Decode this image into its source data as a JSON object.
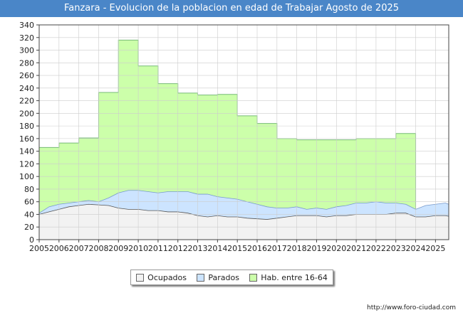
{
  "chart_data": {
    "type": "area",
    "title": "Fanzara - Evolucion de la poblacion en edad de Trabajar Agosto de 2025",
    "xlabel": "",
    "ylabel": "",
    "ylim": [
      0,
      340
    ],
    "xlim": [
      2005,
      2025.67
    ],
    "yticks": [
      "0",
      "20",
      "40",
      "60",
      "80",
      "100",
      "120",
      "140",
      "160",
      "180",
      "200",
      "220",
      "240",
      "260",
      "280",
      "300",
      "320",
      "340"
    ],
    "xticks": [
      "2005",
      "2006",
      "2007",
      "2008",
      "2009",
      "2010",
      "2011",
      "2012",
      "2013",
      "2014",
      "2015",
      "2016",
      "2017",
      "2018",
      "2019",
      "2020",
      "2021",
      "2022",
      "2023",
      "2024",
      "2025"
    ],
    "grid": true,
    "legend_position": "bottom",
    "colors": {
      "hab": "#ccffaa",
      "hab_line": "#77bb77",
      "parados": "#cce4ff",
      "parados_line": "#7799cc",
      "ocupados": "#f2f2f2",
      "ocupados_line": "#555555"
    },
    "series": [
      {
        "name": "Hab. entre 16-64",
        "step": true,
        "x": [
          2005,
          2006,
          2007,
          2008,
          2009,
          2010,
          2011,
          2012,
          2013,
          2014,
          2015,
          2016,
          2017,
          2018,
          2019,
          2020,
          2021,
          2022,
          2023,
          2024
        ],
        "values": [
          146,
          153,
          161,
          233,
          316,
          275,
          247,
          232,
          229,
          230,
          196,
          184,
          160,
          158,
          158,
          158,
          160,
          160,
          168,
          0
        ]
      },
      {
        "name": "Parados",
        "x": [
          2005,
          2005.5,
          2006,
          2006.5,
          2007,
          2007.5,
          2008,
          2008.5,
          2009,
          2009.5,
          2010,
          2010.5,
          2011,
          2011.5,
          2012,
          2012.5,
          2013,
          2013.5,
          2014,
          2014.5,
          2015,
          2015.5,
          2016,
          2016.5,
          2017,
          2017.5,
          2018,
          2018.5,
          2019,
          2019.5,
          2020,
          2020.5,
          2021,
          2021.5,
          2022,
          2022.5,
          2023,
          2023.5,
          2024,
          2024.5,
          2025,
          2025.5,
          2025.67
        ],
        "values": [
          42,
          52,
          56,
          58,
          60,
          62,
          60,
          66,
          74,
          78,
          78,
          76,
          74,
          76,
          76,
          76,
          72,
          72,
          68,
          66,
          64,
          60,
          56,
          52,
          50,
          50,
          52,
          48,
          50,
          48,
          52,
          54,
          58,
          58,
          60,
          58,
          58,
          56,
          48,
          54,
          56,
          58,
          56
        ]
      },
      {
        "name": "Ocupados",
        "x": [
          2005,
          2005.5,
          2006,
          2006.5,
          2007,
          2007.5,
          2008,
          2008.5,
          2009,
          2009.5,
          2010,
          2010.5,
          2011,
          2011.5,
          2012,
          2012.5,
          2013,
          2013.5,
          2014,
          2014.5,
          2015,
          2015.5,
          2016,
          2016.5,
          2017,
          2017.5,
          2018,
          2018.5,
          2019,
          2019.5,
          2020,
          2020.5,
          2021,
          2021.5,
          2022,
          2022.5,
          2023,
          2023.5,
          2024,
          2024.5,
          2025,
          2025.5,
          2025.67
        ],
        "values": [
          40,
          44,
          48,
          52,
          54,
          56,
          55,
          54,
          50,
          48,
          48,
          46,
          46,
          44,
          44,
          42,
          38,
          36,
          38,
          36,
          36,
          34,
          33,
          32,
          34,
          36,
          38,
          38,
          38,
          36,
          38,
          38,
          40,
          40,
          40,
          40,
          42,
          42,
          36,
          36,
          38,
          38,
          37
        ]
      }
    ]
  },
  "legend": {
    "ocupados": "Ocupados",
    "parados": "Parados",
    "hab": "Hab. entre 16-64"
  },
  "source": "http://www.foro-ciudad.com"
}
